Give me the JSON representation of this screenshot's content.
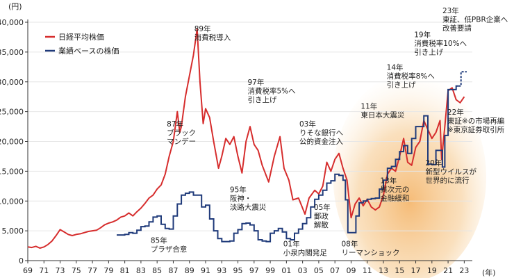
{
  "chart_data": {
    "type": "line",
    "y_unit": "(円)",
    "x_unit": "(年)",
    "ylim": [
      0,
      40000
    ],
    "xlim": [
      1969,
      2024
    ],
    "y_ticks": [
      {
        "value": 0,
        "label": "0"
      },
      {
        "value": 5000,
        "label": "5,000"
      },
      {
        "value": 10000,
        "label": "10,000"
      },
      {
        "value": 15000,
        "label": "15,000"
      },
      {
        "value": 20000,
        "label": "20,000"
      },
      {
        "value": 25000,
        "label": "25,000"
      },
      {
        "value": 30000,
        "label": "30,000"
      },
      {
        "value": 35000,
        "label": "35,000"
      },
      {
        "value": 40000,
        "label": "40,000"
      }
    ],
    "x_ticks": [
      {
        "value": 1969,
        "label": "69"
      },
      {
        "value": 1971,
        "label": "71"
      },
      {
        "value": 1973,
        "label": "73"
      },
      {
        "value": 1975,
        "label": "75"
      },
      {
        "value": 1977,
        "label": "77"
      },
      {
        "value": 1979,
        "label": "79"
      },
      {
        "value": 1981,
        "label": "81"
      },
      {
        "value": 1983,
        "label": "83"
      },
      {
        "value": 1985,
        "label": "85"
      },
      {
        "value": 1987,
        "label": "87"
      },
      {
        "value": 1989,
        "label": "89"
      },
      {
        "value": 1991,
        "label": "91"
      },
      {
        "value": 1993,
        "label": "93"
      },
      {
        "value": 1995,
        "label": "95"
      },
      {
        "value": 1997,
        "label": "97"
      },
      {
        "value": 1999,
        "label": "99"
      },
      {
        "value": 2001,
        "label": "01"
      },
      {
        "value": 2003,
        "label": "03"
      },
      {
        "value": 2005,
        "label": "05"
      },
      {
        "value": 2007,
        "label": "07"
      },
      {
        "value": 2009,
        "label": "09"
      },
      {
        "value": 2011,
        "label": "11"
      },
      {
        "value": 2013,
        "label": "13"
      },
      {
        "value": 2015,
        "label": "15"
      },
      {
        "value": 2017,
        "label": "17"
      },
      {
        "value": 2019,
        "label": "19"
      },
      {
        "value": 2021,
        "label": "21"
      },
      {
        "value": 2023,
        "label": "23"
      }
    ],
    "highlight_range": [
      2008.5,
      2024
    ],
    "series": [
      {
        "name": "日経平均株価",
        "color": "#d62d2d",
        "points": [
          [
            1969.0,
            2300
          ],
          [
            1969.5,
            2200
          ],
          [
            1970.0,
            2400
          ],
          [
            1970.5,
            2100
          ],
          [
            1971.0,
            2300
          ],
          [
            1971.5,
            2700
          ],
          [
            1972.0,
            3300
          ],
          [
            1972.5,
            4200
          ],
          [
            1973.0,
            5200
          ],
          [
            1973.5,
            4800
          ],
          [
            1974.0,
            4400
          ],
          [
            1974.5,
            4200
          ],
          [
            1975.0,
            4400
          ],
          [
            1975.5,
            4500
          ],
          [
            1976.0,
            4700
          ],
          [
            1976.5,
            4900
          ],
          [
            1977.0,
            5000
          ],
          [
            1977.5,
            5100
          ],
          [
            1978.0,
            5500
          ],
          [
            1978.5,
            6000
          ],
          [
            1979.0,
            6300
          ],
          [
            1979.5,
            6500
          ],
          [
            1980.0,
            6800
          ],
          [
            1980.5,
            7300
          ],
          [
            1981.0,
            7500
          ],
          [
            1981.5,
            8000
          ],
          [
            1982.0,
            7500
          ],
          [
            1982.5,
            8200
          ],
          [
            1983.0,
            8800
          ],
          [
            1983.5,
            9600
          ],
          [
            1984.0,
            10500
          ],
          [
            1984.5,
            11000
          ],
          [
            1985.0,
            12000
          ],
          [
            1985.5,
            12700
          ],
          [
            1986.0,
            14500
          ],
          [
            1986.5,
            17500
          ],
          [
            1987.0,
            20000
          ],
          [
            1987.5,
            25000
          ],
          [
            1987.8,
            21500
          ],
          [
            1988.0,
            22500
          ],
          [
            1988.5,
            27500
          ],
          [
            1989.0,
            31000
          ],
          [
            1989.5,
            34500
          ],
          [
            1989.95,
            38900
          ],
          [
            1990.3,
            30000
          ],
          [
            1990.7,
            23000
          ],
          [
            1991.0,
            25500
          ],
          [
            1991.5,
            24000
          ],
          [
            1992.0,
            20000
          ],
          [
            1992.6,
            15500
          ],
          [
            1993.0,
            17500
          ],
          [
            1993.5,
            20500
          ],
          [
            1994.0,
            19500
          ],
          [
            1994.5,
            20800
          ],
          [
            1995.0,
            17500
          ],
          [
            1995.5,
            14700
          ],
          [
            1996.0,
            20000
          ],
          [
            1996.5,
            22500
          ],
          [
            1997.0,
            19500
          ],
          [
            1997.5,
            18500
          ],
          [
            1998.0,
            16000
          ],
          [
            1998.8,
            13200
          ],
          [
            1999.5,
            17500
          ],
          [
            2000.2,
            20800
          ],
          [
            2000.7,
            15500
          ],
          [
            2001.3,
            13500
          ],
          [
            2001.8,
            10200
          ],
          [
            2002.5,
            10500
          ],
          [
            2003.3,
            7800
          ],
          [
            2003.8,
            10500
          ],
          [
            2004.5,
            11800
          ],
          [
            2005.0,
            11200
          ],
          [
            2005.5,
            12500
          ],
          [
            2006.0,
            16500
          ],
          [
            2006.5,
            15000
          ],
          [
            2007.0,
            17000
          ],
          [
            2007.5,
            18000
          ],
          [
            2008.0,
            15500
          ],
          [
            2008.5,
            13500
          ],
          [
            2009.0,
            7200
          ],
          [
            2009.5,
            9500
          ],
          [
            2010.0,
            10500
          ],
          [
            2010.5,
            9200
          ],
          [
            2011.0,
            10300
          ],
          [
            2011.5,
            9000
          ],
          [
            2012.0,
            8500
          ],
          [
            2012.5,
            9000
          ],
          [
            2013.0,
            11000
          ],
          [
            2013.5,
            14500
          ],
          [
            2014.0,
            15500
          ],
          [
            2014.5,
            15000
          ],
          [
            2015.0,
            17500
          ],
          [
            2015.5,
            20500
          ],
          [
            2016.0,
            16500
          ],
          [
            2016.5,
            16000
          ],
          [
            2017.0,
            19000
          ],
          [
            2017.5,
            20000
          ],
          [
            2018.0,
            23500
          ],
          [
            2018.5,
            22000
          ],
          [
            2019.0,
            20500
          ],
          [
            2019.5,
            21500
          ],
          [
            2020.0,
            23500
          ],
          [
            2020.2,
            17000
          ],
          [
            2020.6,
            22500
          ],
          [
            2021.0,
            28500
          ],
          [
            2021.5,
            29000
          ],
          [
            2022.0,
            27000
          ],
          [
            2022.5,
            26500
          ],
          [
            2023.0,
            27500
          ]
        ]
      },
      {
        "name": "業績ベースの株価",
        "color": "#1f3a7a",
        "points": [
          [
            1980.0,
            4300
          ],
          [
            1981.0,
            4400
          ],
          [
            1981.5,
            4700
          ],
          [
            1982.0,
            4600
          ],
          [
            1982.5,
            5100
          ],
          [
            1983.0,
            5700
          ],
          [
            1983.5,
            5800
          ],
          [
            1984.0,
            6500
          ],
          [
            1984.5,
            7300
          ],
          [
            1985.0,
            7500
          ],
          [
            1985.5,
            6100
          ],
          [
            1986.0,
            5400
          ],
          [
            1986.5,
            5300
          ],
          [
            1987.0,
            7500
          ],
          [
            1987.5,
            9500
          ],
          [
            1988.0,
            11000
          ],
          [
            1988.5,
            11300
          ],
          [
            1989.0,
            11500
          ],
          [
            1989.5,
            11000
          ],
          [
            1990.0,
            11000
          ],
          [
            1990.5,
            9000
          ],
          [
            1991.0,
            9300
          ],
          [
            1991.5,
            7000
          ],
          [
            1992.0,
            5000
          ],
          [
            1992.5,
            3700
          ],
          [
            1993.0,
            3200
          ],
          [
            1993.5,
            3200
          ],
          [
            1994.0,
            3300
          ],
          [
            1994.5,
            4600
          ],
          [
            1995.0,
            5200
          ],
          [
            1995.5,
            6200
          ],
          [
            1996.0,
            6300
          ],
          [
            1996.5,
            6000
          ],
          [
            1997.0,
            5000
          ],
          [
            1997.5,
            3500
          ],
          [
            1998.0,
            3300
          ],
          [
            1998.5,
            3200
          ],
          [
            1999.0,
            4600
          ],
          [
            1999.5,
            5000
          ],
          [
            2000.0,
            5400
          ],
          [
            2000.5,
            4800
          ],
          [
            2001.0,
            3700
          ],
          [
            2001.5,
            3500
          ],
          [
            2002.0,
            4600
          ],
          [
            2002.5,
            5300
          ],
          [
            2003.0,
            6200
          ],
          [
            2003.5,
            7200
          ],
          [
            2004.0,
            9000
          ],
          [
            2004.5,
            10300
          ],
          [
            2005.0,
            11000
          ],
          [
            2005.5,
            11800
          ],
          [
            2006.0,
            13000
          ],
          [
            2006.5,
            13400
          ],
          [
            2007.0,
            14500
          ],
          [
            2007.5,
            14300
          ],
          [
            2008.0,
            13500
          ],
          [
            2008.3,
            10200
          ],
          [
            2008.6,
            4700
          ],
          [
            2009.3,
            4700
          ],
          [
            2009.6,
            7500
          ],
          [
            2010.0,
            9700
          ],
          [
            2010.5,
            10000
          ],
          [
            2011.0,
            10300
          ],
          [
            2011.5,
            10400
          ],
          [
            2012.0,
            10500
          ],
          [
            2012.5,
            12000
          ],
          [
            2013.0,
            13500
          ],
          [
            2013.5,
            15500
          ],
          [
            2014.0,
            15800
          ],
          [
            2014.5,
            17000
          ],
          [
            2015.0,
            18300
          ],
          [
            2015.5,
            19300
          ],
          [
            2016.0,
            18000
          ],
          [
            2016.5,
            20500
          ],
          [
            2017.0,
            22500
          ],
          [
            2017.5,
            22500
          ],
          [
            2018.0,
            24300
          ],
          [
            2018.5,
            16200
          ],
          [
            2019.0,
            16100
          ],
          [
            2019.5,
            18500
          ],
          [
            2020.0,
            18500
          ],
          [
            2020.3,
            15700
          ],
          [
            2020.6,
            21000
          ],
          [
            2021.0,
            28700
          ],
          [
            2021.5,
            28700
          ],
          [
            2022.0,
            29300
          ],
          [
            2022.3,
            29300
          ]
        ],
        "projection": [
          [
            2022.3,
            29300
          ],
          [
            2022.6,
            31700
          ],
          [
            2023.3,
            31700
          ]
        ]
      }
    ],
    "annotations": [
      {
        "id": "89",
        "lines": [
          "89年",
          "消費税導入"
        ],
        "x": 1989.6,
        "y": 38500
      },
      {
        "id": "87",
        "lines": [
          "87年",
          "ブラック",
          "マンデー"
        ],
        "x": 1986.2,
        "y": 22500
      },
      {
        "id": "85",
        "lines": [
          "85年",
          "プラザ合意"
        ],
        "x": 1984.2,
        "y": 3000
      },
      {
        "id": "97",
        "lines": [
          "97年",
          "消費税率5%へ",
          "引き上げ"
        ],
        "x": 1996.2,
        "y": 29500
      },
      {
        "id": "95",
        "lines": [
          "95年",
          "阪神・",
          "淡路大震災"
        ],
        "x": 1994.0,
        "y": 11500
      },
      {
        "id": "01",
        "lines": [
          "01年",
          "小泉内閣発足"
        ],
        "x": 2000.6,
        "y": 2400
      },
      {
        "id": "03",
        "lines": [
          "03年",
          "りそな銀行へ",
          "公的資金注入"
        ],
        "x": 2002.6,
        "y": 22500
      },
      {
        "id": "05",
        "lines": [
          "05年",
          "郵政",
          "解散"
        ],
        "x": 2004.4,
        "y": 8500
      },
      {
        "id": "08",
        "lines": [
          "08年",
          "リーマンショック"
        ],
        "x": 2007.8,
        "y": 2400
      },
      {
        "id": "11",
        "lines": [
          "11年",
          "東日本大震災"
        ],
        "x": 2010.2,
        "y": 25500
      },
      {
        "id": "13",
        "lines": [
          "13年",
          "異次元の",
          "金融緩和"
        ],
        "x": 2012.6,
        "y": 13000
      },
      {
        "id": "14",
        "lines": [
          "14年",
          "消費税率8%へ",
          "引き上げ"
        ],
        "x": 2013.4,
        "y": 32000
      },
      {
        "id": "19",
        "lines": [
          "19年",
          "消費税率10%へ",
          "引き上げ"
        ],
        "x": 2016.8,
        "y": 37500
      },
      {
        "id": "20",
        "lines": [
          "20年",
          "新型ウイルスが",
          "世界的に流行"
        ],
        "x": 2018.2,
        "y": 16000
      },
      {
        "id": "22",
        "lines": [
          "22年",
          "東証※の市場再編",
          "※東京証券取引所"
        ],
        "x": 2020.9,
        "y": 24500
      },
      {
        "id": "23",
        "lines": [
          "23年",
          "東証、低PBR企業へ",
          "改善要請"
        ],
        "x": 2020.3,
        "y": 41500
      }
    ]
  }
}
